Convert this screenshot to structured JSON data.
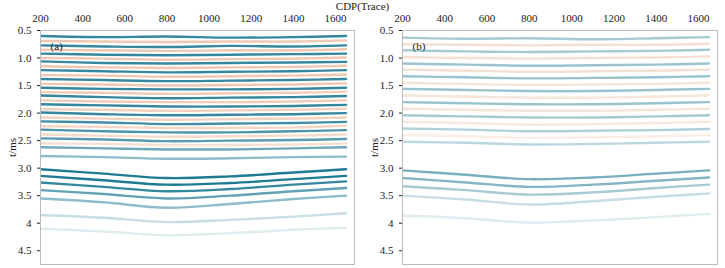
{
  "chart_data": {
    "type": "seismic_section",
    "x_label": "CDP(Trace)",
    "y_label": "t/ms",
    "xlim": [
      200,
      1690
    ],
    "xticks": [
      200,
      400,
      600,
      800,
      1000,
      1200,
      1400,
      1600
    ],
    "ylim": [
      0.5,
      4.75
    ],
    "yticks": [
      0.5,
      {
        "value": 1,
        "label": "1.0"
      },
      1.5,
      {
        "value": 2,
        "label": "2.0"
      },
      2.5,
      {
        "value": 3,
        "label": "3.0"
      },
      3.5,
      4,
      4.5
    ],
    "x": [
      200,
      500,
      800,
      1100,
      1400,
      1650
    ],
    "panels": [
      {
        "label": "(a)",
        "series": [
          {
            "color": "#1f7a94",
            "reflectors": [
              {
                "t": [
                  0.6,
                  0.62,
                  0.61,
                  0.63,
                  0.62,
                  0.6
                ],
                "amplitude": 0.9
              },
              {
                "t": [
                  0.77,
                  0.79,
                  0.8,
                  0.78,
                  0.79,
                  0.77
                ],
                "amplitude": 0.9
              },
              {
                "t": [
                  0.92,
                  0.94,
                  0.95,
                  0.94,
                  0.93,
                  0.92
                ],
                "amplitude": 0.9
              },
              {
                "t": [
                  1.06,
                  1.09,
                  1.1,
                  1.09,
                  1.08,
                  1.07
                ],
                "amplitude": 0.9
              },
              {
                "t": [
                  1.22,
                  1.24,
                  1.26,
                  1.25,
                  1.24,
                  1.22
                ],
                "amplitude": 0.9
              },
              {
                "t": [
                  1.38,
                  1.4,
                  1.42,
                  1.41,
                  1.4,
                  1.38
                ],
                "amplitude": 0.9
              },
              {
                "t": [
                  1.54,
                  1.56,
                  1.57,
                  1.57,
                  1.56,
                  1.54
                ],
                "amplitude": 0.9
              },
              {
                "t": [
                  1.68,
                  1.71,
                  1.73,
                  1.72,
                  1.71,
                  1.69
                ],
                "amplitude": 0.9
              },
              {
                "t": [
                  1.84,
                  1.86,
                  1.88,
                  1.88,
                  1.87,
                  1.85
                ],
                "amplitude": 0.9
              },
              {
                "t": [
                  1.99,
                  2.02,
                  2.04,
                  2.03,
                  2.02,
                  2.0
                ],
                "amplitude": 0.9
              },
              {
                "t": [
                  2.15,
                  2.17,
                  2.2,
                  2.19,
                  2.18,
                  2.16
                ],
                "amplitude": 0.85
              },
              {
                "t": [
                  2.3,
                  2.33,
                  2.35,
                  2.35,
                  2.33,
                  2.31
                ],
                "amplitude": 0.8
              },
              {
                "t": [
                  2.46,
                  2.48,
                  2.51,
                  2.5,
                  2.49,
                  2.47
                ],
                "amplitude": 0.75
              },
              {
                "t": [
                  2.62,
                  2.64,
                  2.66,
                  2.66,
                  2.64,
                  2.62
                ],
                "amplitude": 0.65
              },
              {
                "t": [
                  2.78,
                  2.8,
                  2.83,
                  2.82,
                  2.8,
                  2.79
                ],
                "amplitude": 0.5
              },
              {
                "t": [
                  3.02,
                  3.1,
                  3.18,
                  3.15,
                  3.08,
                  3.02
                ],
                "amplitude": 1
              },
              {
                "t": [
                  3.14,
                  3.22,
                  3.3,
                  3.27,
                  3.2,
                  3.14
                ],
                "amplitude": 1
              },
              {
                "t": [
                  3.26,
                  3.34,
                  3.42,
                  3.38,
                  3.3,
                  3.24
                ],
                "amplitude": 0.9
              },
              {
                "t": [
                  3.4,
                  3.47,
                  3.55,
                  3.5,
                  3.42,
                  3.36
                ],
                "amplitude": 0.7
              },
              {
                "t": [
                  3.55,
                  3.62,
                  3.72,
                  3.65,
                  3.56,
                  3.5
                ],
                "amplitude": 0.5
              },
              {
                "t": [
                  3.85,
                  3.9,
                  3.98,
                  3.94,
                  3.88,
                  3.82
                ],
                "amplitude": 0.25
              },
              {
                "t": [
                  4.1,
                  4.15,
                  4.22,
                  4.18,
                  4.12,
                  4.08
                ],
                "amplitude": 0.15
              }
            ]
          },
          {
            "color": "#e3a47f",
            "reflectors": [
              {
                "t": [
                  0.69,
                  0.7,
                  0.71,
                  0.7,
                  0.7,
                  0.68
                ],
                "amplitude": 0.6
              },
              {
                "t": [
                  0.85,
                  0.86,
                  0.87,
                  0.86,
                  0.86,
                  0.84
                ],
                "amplitude": 0.6
              },
              {
                "t": [
                  1.0,
                  1.01,
                  1.03,
                  1.02,
                  1.01,
                  0.99
                ],
                "amplitude": 0.6
              },
              {
                "t": [
                  1.15,
                  1.17,
                  1.18,
                  1.17,
                  1.16,
                  1.14
                ],
                "amplitude": 0.6
              },
              {
                "t": [
                  1.31,
                  1.32,
                  1.34,
                  1.33,
                  1.32,
                  1.3
                ],
                "amplitude": 0.6
              },
              {
                "t": [
                  1.47,
                  1.48,
                  1.5,
                  1.49,
                  1.48,
                  1.46
                ],
                "amplitude": 0.6
              },
              {
                "t": [
                  1.62,
                  1.63,
                  1.65,
                  1.64,
                  1.63,
                  1.61
                ],
                "amplitude": 0.55
              },
              {
                "t": [
                  1.77,
                  1.79,
                  1.8,
                  1.8,
                  1.79,
                  1.77
                ],
                "amplitude": 0.55
              },
              {
                "t": [
                  1.93,
                  1.94,
                  1.96,
                  1.95,
                  1.94,
                  1.92
                ],
                "amplitude": 0.5
              },
              {
                "t": [
                  2.08,
                  2.1,
                  2.12,
                  2.11,
                  2.1,
                  2.08
                ],
                "amplitude": 0.5
              },
              {
                "t": [
                  2.24,
                  2.25,
                  2.27,
                  2.27,
                  2.26,
                  2.23
                ],
                "amplitude": 0.45
              },
              {
                "t": [
                  2.39,
                  2.41,
                  2.43,
                  2.42,
                  2.41,
                  2.39
                ],
                "amplitude": 0.4
              },
              {
                "t": [
                  2.55,
                  2.56,
                  2.58,
                  2.58,
                  2.57,
                  2.55
                ],
                "amplitude": 0.35
              }
            ]
          }
        ]
      },
      {
        "label": "(b)",
        "series": [
          {
            "color": "#1f7a94",
            "reflectors": [
              {
                "t": [
                  0.63,
                  0.65,
                  0.64,
                  0.66,
                  0.64,
                  0.62
                ],
                "amplitude": 0.4
              },
              {
                "t": [
                  0.86,
                  0.88,
                  0.89,
                  0.88,
                  0.87,
                  0.85
                ],
                "amplitude": 0.4
              },
              {
                "t": [
                  1.1,
                  1.12,
                  1.14,
                  1.13,
                  1.12,
                  1.1
                ],
                "amplitude": 0.45
              },
              {
                "t": [
                  1.33,
                  1.35,
                  1.37,
                  1.36,
                  1.35,
                  1.33
                ],
                "amplitude": 0.45
              },
              {
                "t": [
                  1.56,
                  1.58,
                  1.6,
                  1.6,
                  1.58,
                  1.56
                ],
                "amplitude": 0.45
              },
              {
                "t": [
                  1.8,
                  1.82,
                  1.84,
                  1.84,
                  1.82,
                  1.8
                ],
                "amplitude": 0.45
              },
              {
                "t": [
                  2.04,
                  2.06,
                  2.08,
                  2.08,
                  2.06,
                  2.04
                ],
                "amplitude": 0.4
              },
              {
                "t": [
                  2.28,
                  2.3,
                  2.33,
                  2.32,
                  2.31,
                  2.29
                ],
                "amplitude": 0.35
              },
              {
                "t": [
                  2.52,
                  2.54,
                  2.57,
                  2.56,
                  2.54,
                  2.52
                ],
                "amplitude": 0.3
              },
              {
                "t": [
                  3.04,
                  3.12,
                  3.2,
                  3.17,
                  3.1,
                  3.04
                ],
                "amplitude": 0.6
              },
              {
                "t": [
                  3.18,
                  3.26,
                  3.34,
                  3.3,
                  3.23,
                  3.17
                ],
                "amplitude": 0.55
              },
              {
                "t": [
                  3.33,
                  3.4,
                  3.48,
                  3.44,
                  3.36,
                  3.3
                ],
                "amplitude": 0.4
              },
              {
                "t": [
                  3.5,
                  3.57,
                  3.66,
                  3.6,
                  3.52,
                  3.46
                ],
                "amplitude": 0.25
              },
              {
                "t": [
                  3.86,
                  3.91,
                  3.99,
                  3.95,
                  3.89,
                  3.83
                ],
                "amplitude": 0.15
              }
            ]
          },
          {
            "color": "#e3a47f",
            "reflectors": [
              {
                "t": [
                  0.75,
                  0.76,
                  0.77,
                  0.76,
                  0.76,
                  0.74
                ],
                "amplitude": 0.35
              },
              {
                "t": [
                  0.98,
                  1.0,
                  1.01,
                  1.0,
                  0.99,
                  0.97
                ],
                "amplitude": 0.35
              },
              {
                "t": [
                  1.21,
                  1.23,
                  1.25,
                  1.24,
                  1.23,
                  1.21
                ],
                "amplitude": 0.35
              },
              {
                "t": [
                  1.45,
                  1.47,
                  1.49,
                  1.48,
                  1.47,
                  1.45
                ],
                "amplitude": 0.3
              },
              {
                "t": [
                  1.68,
                  1.7,
                  1.72,
                  1.72,
                  1.7,
                  1.68
                ],
                "amplitude": 0.3
              },
              {
                "t": [
                  1.92,
                  1.94,
                  1.96,
                  1.96,
                  1.94,
                  1.92
                ],
                "amplitude": 0.3
              },
              {
                "t": [
                  2.16,
                  2.18,
                  2.21,
                  2.2,
                  2.18,
                  2.16
                ],
                "amplitude": 0.25
              },
              {
                "t": [
                  2.4,
                  2.42,
                  2.45,
                  2.44,
                  2.42,
                  2.4
                ],
                "amplitude": 0.2
              }
            ]
          }
        ]
      }
    ]
  }
}
